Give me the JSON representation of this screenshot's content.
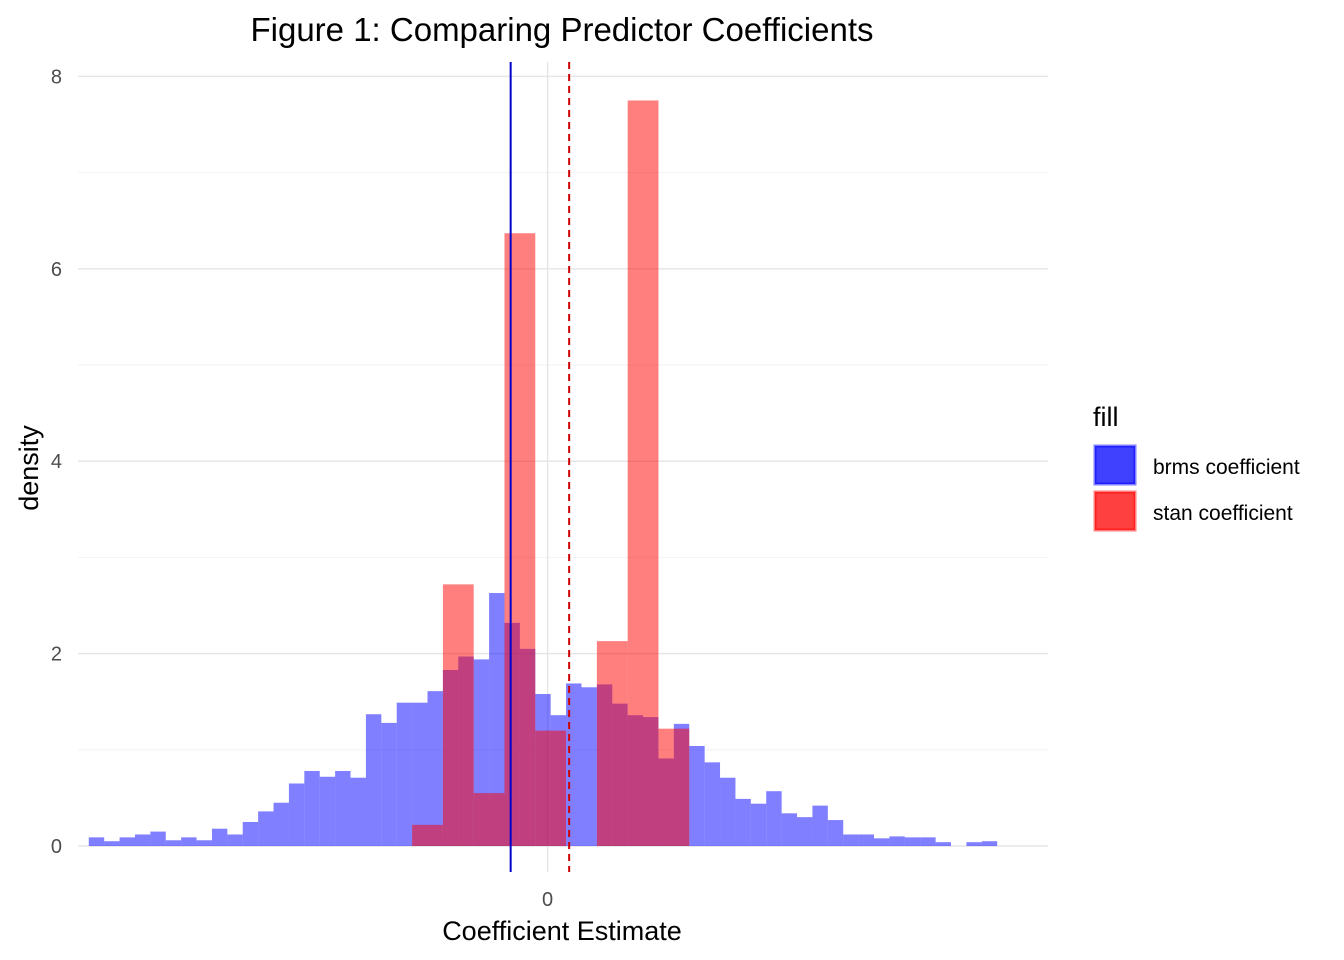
{
  "chart_data": {
    "type": "histogram",
    "title": "Figure 1: Comparing Predictor Coefficients",
    "xlabel": "Coefficient Estimate",
    "ylabel": "density",
    "xlim": [
      -0.0305,
      0.0325
    ],
    "ylim": [
      -0.27,
      8.15
    ],
    "x_ticks": [
      {
        "value": 0,
        "label": "0"
      }
    ],
    "y_ticks": [
      {
        "value": 0,
        "label": "0"
      },
      {
        "value": 2,
        "label": "2"
      },
      {
        "value": 4,
        "label": "4"
      },
      {
        "value": 6,
        "label": "6"
      },
      {
        "value": 8,
        "label": "8"
      }
    ],
    "y_minor_ticks": [
      1,
      3,
      5,
      7
    ],
    "grid": true,
    "legend": {
      "title": "fill",
      "position": "right",
      "entries": [
        {
          "label": "brms coefficient",
          "color": "#0000ff"
        },
        {
          "label": "stan coefficient",
          "color": "#ff0000"
        }
      ]
    },
    "series": [
      {
        "name": "brms coefficient",
        "color": "#0000ff",
        "opacity": 0.5,
        "bin_start": -0.0298,
        "bin_width": 0.001,
        "values": [
          0.09,
          0.05,
          0.09,
          0.12,
          0.15,
          0.06,
          0.09,
          0.06,
          0.18,
          0.12,
          0.25,
          0.36,
          0.45,
          0.65,
          0.78,
          0.72,
          0.78,
          0.71,
          1.37,
          1.28,
          1.49,
          1.49,
          1.61,
          1.83,
          1.97,
          1.94,
          2.63,
          2.32,
          2.05,
          1.58,
          1.36,
          1.69,
          1.65,
          1.68,
          1.48,
          1.36,
          1.34,
          0.91,
          1.27,
          1.04,
          0.87,
          0.71,
          0.49,
          0.44,
          0.57,
          0.34,
          0.3,
          0.42,
          0.27,
          0.12,
          0.12,
          0.08,
          0.1,
          0.09,
          0.09,
          0.04,
          0.0,
          0.04,
          0.05
        ]
      },
      {
        "name": "stan coefficient",
        "color": "#ff0000",
        "opacity": 0.5,
        "bin_start": -0.0088,
        "bin_width": 0.002,
        "values": [
          0.22,
          2.72,
          0.55,
          6.37,
          1.2,
          0.0,
          2.13,
          7.75,
          1.22
        ]
      }
    ],
    "vlines": [
      {
        "x": -0.0024,
        "color": "#0000cc",
        "style": "solid"
      },
      {
        "x": 0.0014,
        "color": "#cc0000",
        "style": "dashed"
      }
    ]
  }
}
